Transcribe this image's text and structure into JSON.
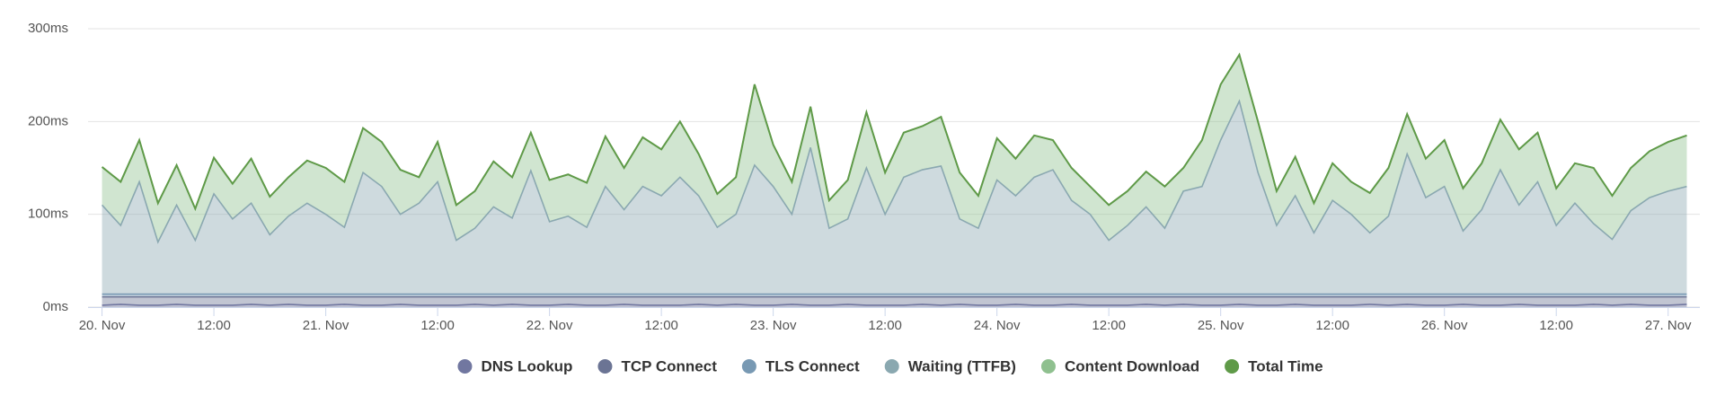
{
  "chart_data": {
    "type": "area",
    "stacked": true,
    "grid": true,
    "legend": "bottom",
    "xlim": [
      -1.5,
      171.4
    ],
    "xticks": [
      {
        "value": 0,
        "label": "20. Nov"
      },
      {
        "value": 12,
        "label": "12:00"
      },
      {
        "value": 24,
        "label": "21. Nov"
      },
      {
        "value": 36,
        "label": "12:00"
      },
      {
        "value": 48,
        "label": "22. Nov"
      },
      {
        "value": 60,
        "label": "12:00"
      },
      {
        "value": 72,
        "label": "23. Nov"
      },
      {
        "value": 84,
        "label": "12:00"
      },
      {
        "value": 96,
        "label": "24. Nov"
      },
      {
        "value": 108,
        "label": "12:00"
      },
      {
        "value": 120,
        "label": "25. Nov"
      },
      {
        "value": 132,
        "label": "12:00"
      },
      {
        "value": 144,
        "label": "26. Nov"
      },
      {
        "value": 156,
        "label": "12:00"
      },
      {
        "value": 168,
        "label": "27. Nov"
      }
    ],
    "ylim": [
      0,
      300
    ],
    "yticks": [
      {
        "value": 0,
        "label": "0ms"
      },
      {
        "value": 100,
        "label": "100ms"
      },
      {
        "value": 200,
        "label": "200ms"
      },
      {
        "value": 300,
        "label": "300ms"
      }
    ],
    "x": [
      0,
      2,
      4,
      6,
      8,
      10,
      12,
      14,
      16,
      18,
      20,
      22,
      24,
      26,
      28,
      30,
      32,
      34,
      36,
      38,
      40,
      42,
      44,
      46,
      48,
      50,
      52,
      54,
      56,
      58,
      60,
      62,
      64,
      66,
      68,
      70,
      72,
      74,
      76,
      78,
      80,
      82,
      84,
      86,
      88,
      90,
      92,
      94,
      96,
      98,
      100,
      102,
      104,
      106,
      108,
      110,
      112,
      114,
      116,
      118,
      120,
      122,
      124,
      126,
      128,
      130,
      132,
      134,
      136,
      138,
      140,
      142,
      144,
      146,
      148,
      150,
      152,
      154,
      156,
      158,
      160,
      162,
      164,
      166,
      168,
      170
    ],
    "series": [
      {
        "name": "DNS Lookup",
        "color": "#7177a0",
        "type": "area",
        "values": [
          2,
          3,
          2,
          2,
          3,
          2,
          2,
          2,
          3,
          2,
          3,
          2,
          2,
          3,
          2,
          2,
          3,
          2,
          2,
          2,
          3,
          2,
          3,
          2,
          2,
          3,
          2,
          2,
          3,
          2,
          2,
          2,
          3,
          2,
          3,
          2,
          2,
          3,
          2,
          2,
          3,
          2,
          2,
          2,
          3,
          2,
          3,
          2,
          2,
          3,
          2,
          2,
          3,
          2,
          2,
          2,
          3,
          2,
          3,
          2,
          2,
          3,
          2,
          2,
          3,
          2,
          2,
          2,
          3,
          2,
          3,
          2,
          2,
          3,
          2,
          2,
          3,
          2,
          2,
          2,
          3,
          2,
          3,
          2,
          2,
          3
        ]
      },
      {
        "name": "TCP Connect",
        "color": "#6b7494",
        "type": "area",
        "values": [
          9,
          8,
          9,
          9,
          8,
          9,
          9,
          9,
          8,
          9,
          8,
          9,
          9,
          8,
          9,
          9,
          8,
          9,
          9,
          9,
          8,
          9,
          8,
          9,
          9,
          8,
          9,
          9,
          8,
          9,
          9,
          9,
          8,
          9,
          8,
          9,
          9,
          8,
          9,
          9,
          8,
          9,
          9,
          9,
          8,
          9,
          8,
          9,
          9,
          8,
          9,
          9,
          8,
          9,
          9,
          9,
          8,
          9,
          8,
          9,
          9,
          8,
          9,
          9,
          8,
          9,
          9,
          9,
          8,
          9,
          8,
          9,
          9,
          8,
          9,
          9,
          8,
          9,
          9,
          9,
          8,
          9,
          8,
          9,
          9,
          8
        ]
      },
      {
        "name": "TLS Connect",
        "color": "#7899b3",
        "type": "area",
        "values": [
          3,
          3,
          3,
          3,
          3,
          3,
          3,
          3,
          3,
          3,
          3,
          3,
          3,
          3,
          3,
          3,
          3,
          3,
          3,
          3,
          3,
          3,
          3,
          3,
          3,
          3,
          3,
          3,
          3,
          3,
          3,
          3,
          3,
          3,
          3,
          3,
          3,
          3,
          3,
          3,
          3,
          3,
          3,
          3,
          3,
          3,
          3,
          3,
          3,
          3,
          3,
          3,
          3,
          3,
          3,
          3,
          3,
          3,
          3,
          3,
          3,
          3,
          3,
          3,
          3,
          3,
          3,
          3,
          3,
          3,
          3,
          3,
          3,
          3,
          3,
          3,
          3,
          3,
          3,
          3,
          3,
          3,
          3,
          3,
          3,
          3
        ]
      },
      {
        "name": "Waiting (TTFB)",
        "color": "#8aa8b0",
        "type": "area",
        "values": [
          96,
          74,
          121,
          56,
          96,
          58,
          108,
          81,
          98,
          64,
          84,
          98,
          86,
          72,
          131,
          116,
          86,
          98,
          121,
          58,
          71,
          94,
          82,
          133,
          78,
          84,
          72,
          116,
          91,
          116,
          106,
          126,
          106,
          72,
          86,
          139,
          116,
          86,
          158,
          71,
          81,
          136,
          86,
          126,
          134,
          138,
          81,
          71,
          123,
          106,
          126,
          134,
          101,
          86,
          58,
          74,
          94,
          71,
          111,
          116,
          166,
          208,
          131,
          74,
          106,
          66,
          101,
          86,
          66,
          84,
          151,
          104,
          116,
          68,
          91,
          134,
          96,
          121,
          74,
          98,
          76,
          59,
          90,
          104,
          111,
          116
        ]
      },
      {
        "name": "Content Download",
        "color": "#8fc08f",
        "type": "area",
        "values": [
          41,
          47,
          45,
          42,
          43,
          34,
          39,
          38,
          48,
          41,
          42,
          46,
          50,
          49,
          48,
          48,
          48,
          28,
          43,
          38,
          40,
          49,
          44,
          41,
          45,
          45,
          48,
          54,
          45,
          53,
          50,
          60,
          45,
          36,
          40,
          87,
          45,
          35,
          44,
          30,
          42,
          60,
          45,
          48,
          47,
          53,
          50,
          35,
          45,
          40,
          45,
          32,
          35,
          30,
          38,
          37,
          38,
          45,
          25,
          50,
          60,
          50,
          55,
          37,
          42,
          32,
          40,
          35,
          43,
          52,
          43,
          42,
          50,
          46,
          50,
          54,
          60,
          53,
          40,
          43,
          60,
          47,
          46,
          50,
          53,
          55
        ]
      },
      {
        "name": "Total Time",
        "color": "#5f9a48",
        "type": "line",
        "values": [
          151,
          135,
          180,
          112,
          153,
          106,
          161,
          133,
          160,
          119,
          140,
          158,
          150,
          135,
          193,
          178,
          148,
          140,
          178,
          110,
          125,
          157,
          140,
          188,
          137,
          143,
          134,
          184,
          150,
          183,
          170,
          200,
          165,
          122,
          140,
          240,
          175,
          135,
          216,
          115,
          137,
          210,
          145,
          188,
          195,
          205,
          145,
          120,
          182,
          160,
          185,
          180,
          150,
          130,
          110,
          125,
          146,
          130,
          150,
          180,
          240,
          272,
          200,
          125,
          162,
          112,
          155,
          135,
          123,
          150,
          208,
          160,
          180,
          128,
          155,
          202,
          170,
          188,
          128,
          155,
          150,
          120,
          150,
          168,
          178,
          185
        ]
      }
    ]
  }
}
